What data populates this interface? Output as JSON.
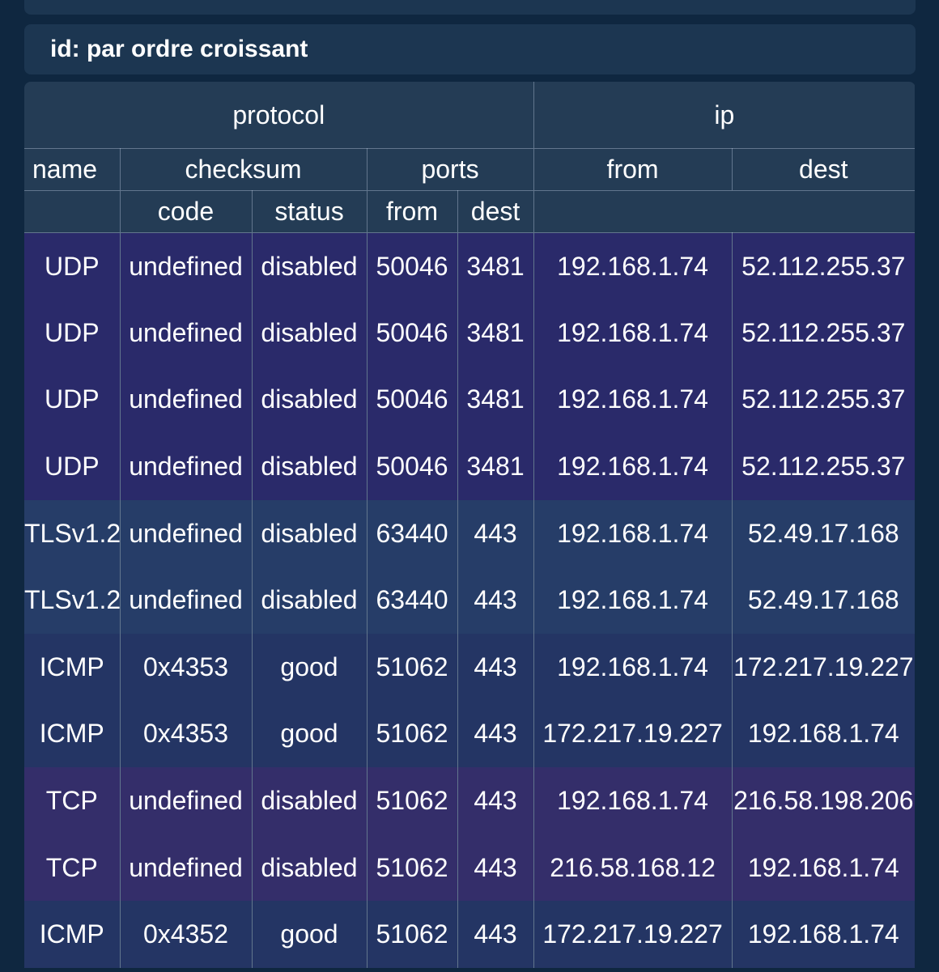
{
  "sort": {
    "label": "id: par ordre croissant"
  },
  "headers": {
    "protocol": "protocol",
    "ip": "ip",
    "name": "name",
    "checksum": "checksum",
    "ports": "ports",
    "ip_from": "from",
    "ip_dest": "dest",
    "code": "code",
    "status": "status",
    "port_from": "from",
    "port_dest": "dest"
  },
  "rows": [
    {
      "group": "udp",
      "name": "UDP",
      "code": "undefined",
      "status": "disabled",
      "port_from": "50046",
      "port_dest": "3481",
      "ip_from": "192.168.1.74",
      "ip_dest": "52.112.255.37"
    },
    {
      "group": "udp",
      "name": "UDP",
      "code": "undefined",
      "status": "disabled",
      "port_from": "50046",
      "port_dest": "3481",
      "ip_from": "192.168.1.74",
      "ip_dest": "52.112.255.37"
    },
    {
      "group": "udp",
      "name": "UDP",
      "code": "undefined",
      "status": "disabled",
      "port_from": "50046",
      "port_dest": "3481",
      "ip_from": "192.168.1.74",
      "ip_dest": "52.112.255.37"
    },
    {
      "group": "udp",
      "name": "UDP",
      "code": "undefined",
      "status": "disabled",
      "port_from": "50046",
      "port_dest": "3481",
      "ip_from": "192.168.1.74",
      "ip_dest": "52.112.255.37"
    },
    {
      "group": "tls",
      "name": "TLSv1.2",
      "code": "undefined",
      "status": "disabled",
      "port_from": "63440",
      "port_dest": "443",
      "ip_from": "192.168.1.74",
      "ip_dest": "52.49.17.168"
    },
    {
      "group": "tls",
      "name": "TLSv1.2",
      "code": "undefined",
      "status": "disabled",
      "port_from": "63440",
      "port_dest": "443",
      "ip_from": "192.168.1.74",
      "ip_dest": "52.49.17.168"
    },
    {
      "group": "icmp",
      "name": "ICMP",
      "code": "0x4353",
      "status": "good",
      "port_from": "51062",
      "port_dest": "443",
      "ip_from": "192.168.1.74",
      "ip_dest": "172.217.19.227"
    },
    {
      "group": "icmp",
      "name": "ICMP",
      "code": "0x4353",
      "status": "good",
      "port_from": "51062",
      "port_dest": "443",
      "ip_from": "172.217.19.227",
      "ip_dest": "192.168.1.74"
    },
    {
      "group": "tcp",
      "name": "TCP",
      "code": "undefined",
      "status": "disabled",
      "port_from": "51062",
      "port_dest": "443",
      "ip_from": "192.168.1.74",
      "ip_dest": "216.58.198.206"
    },
    {
      "group": "tcp",
      "name": "TCP",
      "code": "undefined",
      "status": "disabled",
      "port_from": "51062",
      "port_dest": "443",
      "ip_from": "216.58.168.12",
      "ip_dest": "192.168.1.74"
    },
    {
      "group": "icmp",
      "name": "ICMP",
      "code": "0x4352",
      "status": "good",
      "port_from": "51062",
      "port_dest": "443",
      "ip_from": "172.217.19.227",
      "ip_dest": "192.168.1.74"
    }
  ]
}
